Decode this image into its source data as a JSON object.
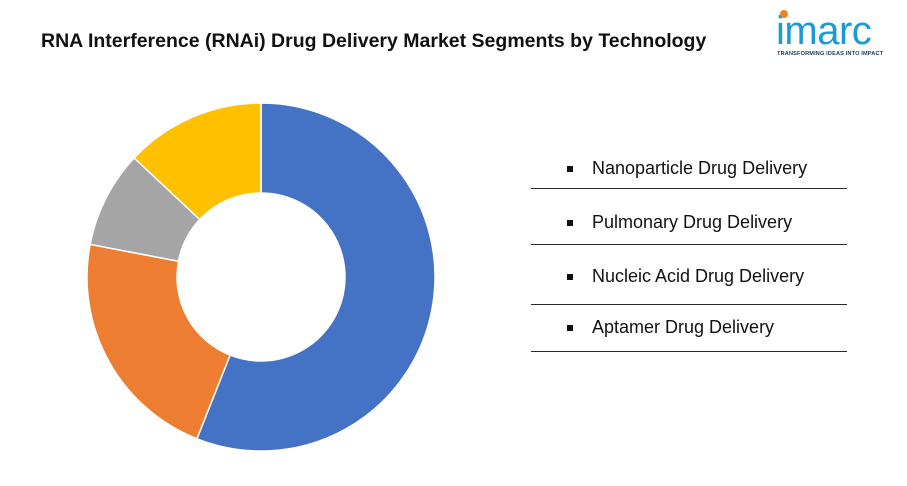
{
  "title": "RNA Interference (RNAi) Drug Delivery Market Segments by Technology",
  "logo": {
    "word": "imarc",
    "tagline": "TRANSFORMING IDEAS INTO IMPACT",
    "colors": {
      "word": "#1a9ad6",
      "dot": "#f58220",
      "tagline": "#1a3f6b"
    }
  },
  "chart_data": {
    "type": "pie",
    "variant": "donut",
    "title": "",
    "categories": [
      "Nanoparticle Drug Delivery",
      "Pulmonary Drug Delivery",
      "Nucleic Acid Drug Delivery",
      "Aptamer Drug Delivery"
    ],
    "values": [
      56,
      22,
      9,
      13
    ],
    "colors": [
      "#4472c4",
      "#ed7d31",
      "#a5a5a5",
      "#ffc000"
    ],
    "legend_position": "right"
  }
}
